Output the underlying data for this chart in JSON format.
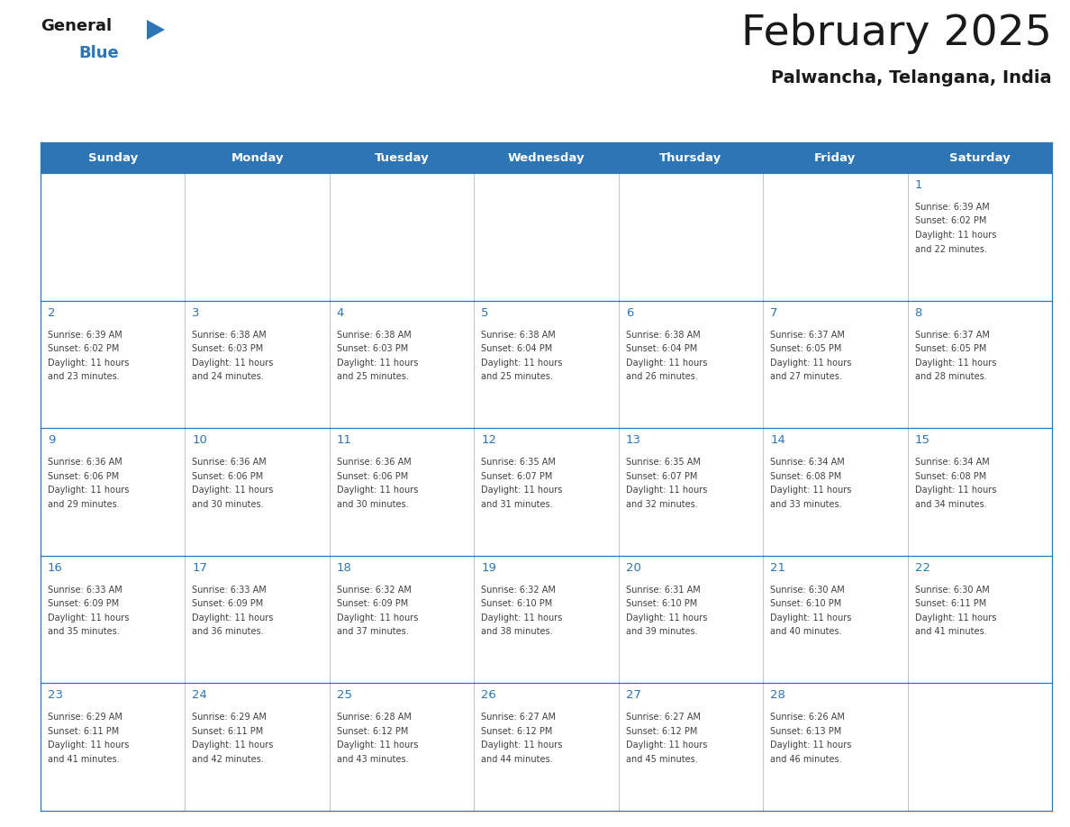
{
  "title": "February 2025",
  "subtitle": "Palwancha, Telangana, India",
  "header_bg": "#2E75B6",
  "header_text_color": "#FFFFFF",
  "cell_bg_white": "#FFFFFF",
  "cell_bg_gray": "#F5F5F5",
  "day_number_color": "#2E75B6",
  "text_color": "#404040",
  "border_color": "#2E75B6",
  "grid_line_color": "#AAAAAA",
  "days_of_week": [
    "Sunday",
    "Monday",
    "Tuesday",
    "Wednesday",
    "Thursday",
    "Friday",
    "Saturday"
  ],
  "calendar_data": [
    [
      null,
      null,
      null,
      null,
      null,
      null,
      {
        "day": "1",
        "sunrise": "6:39 AM",
        "sunset": "6:02 PM",
        "daylight_h": "11 hours",
        "daylight_m": "and 22 minutes."
      }
    ],
    [
      {
        "day": "2",
        "sunrise": "6:39 AM",
        "sunset": "6:02 PM",
        "daylight_h": "11 hours",
        "daylight_m": "and 23 minutes."
      },
      {
        "day": "3",
        "sunrise": "6:38 AM",
        "sunset": "6:03 PM",
        "daylight_h": "11 hours",
        "daylight_m": "and 24 minutes."
      },
      {
        "day": "4",
        "sunrise": "6:38 AM",
        "sunset": "6:03 PM",
        "daylight_h": "11 hours",
        "daylight_m": "and 25 minutes."
      },
      {
        "day": "5",
        "sunrise": "6:38 AM",
        "sunset": "6:04 PM",
        "daylight_h": "11 hours",
        "daylight_m": "and 25 minutes."
      },
      {
        "day": "6",
        "sunrise": "6:38 AM",
        "sunset": "6:04 PM",
        "daylight_h": "11 hours",
        "daylight_m": "and 26 minutes."
      },
      {
        "day": "7",
        "sunrise": "6:37 AM",
        "sunset": "6:05 PM",
        "daylight_h": "11 hours",
        "daylight_m": "and 27 minutes."
      },
      {
        "day": "8",
        "sunrise": "6:37 AM",
        "sunset": "6:05 PM",
        "daylight_h": "11 hours",
        "daylight_m": "and 28 minutes."
      }
    ],
    [
      {
        "day": "9",
        "sunrise": "6:36 AM",
        "sunset": "6:06 PM",
        "daylight_h": "11 hours",
        "daylight_m": "and 29 minutes."
      },
      {
        "day": "10",
        "sunrise": "6:36 AM",
        "sunset": "6:06 PM",
        "daylight_h": "11 hours",
        "daylight_m": "and 30 minutes."
      },
      {
        "day": "11",
        "sunrise": "6:36 AM",
        "sunset": "6:06 PM",
        "daylight_h": "11 hours",
        "daylight_m": "and 30 minutes."
      },
      {
        "day": "12",
        "sunrise": "6:35 AM",
        "sunset": "6:07 PM",
        "daylight_h": "11 hours",
        "daylight_m": "and 31 minutes."
      },
      {
        "day": "13",
        "sunrise": "6:35 AM",
        "sunset": "6:07 PM",
        "daylight_h": "11 hours",
        "daylight_m": "and 32 minutes."
      },
      {
        "day": "14",
        "sunrise": "6:34 AM",
        "sunset": "6:08 PM",
        "daylight_h": "11 hours",
        "daylight_m": "and 33 minutes."
      },
      {
        "day": "15",
        "sunrise": "6:34 AM",
        "sunset": "6:08 PM",
        "daylight_h": "11 hours",
        "daylight_m": "and 34 minutes."
      }
    ],
    [
      {
        "day": "16",
        "sunrise": "6:33 AM",
        "sunset": "6:09 PM",
        "daylight_h": "11 hours",
        "daylight_m": "and 35 minutes."
      },
      {
        "day": "17",
        "sunrise": "6:33 AM",
        "sunset": "6:09 PM",
        "daylight_h": "11 hours",
        "daylight_m": "and 36 minutes."
      },
      {
        "day": "18",
        "sunrise": "6:32 AM",
        "sunset": "6:09 PM",
        "daylight_h": "11 hours",
        "daylight_m": "and 37 minutes."
      },
      {
        "day": "19",
        "sunrise": "6:32 AM",
        "sunset": "6:10 PM",
        "daylight_h": "11 hours",
        "daylight_m": "and 38 minutes."
      },
      {
        "day": "20",
        "sunrise": "6:31 AM",
        "sunset": "6:10 PM",
        "daylight_h": "11 hours",
        "daylight_m": "and 39 minutes."
      },
      {
        "day": "21",
        "sunrise": "6:30 AM",
        "sunset": "6:10 PM",
        "daylight_h": "11 hours",
        "daylight_m": "and 40 minutes."
      },
      {
        "day": "22",
        "sunrise": "6:30 AM",
        "sunset": "6:11 PM",
        "daylight_h": "11 hours",
        "daylight_m": "and 41 minutes."
      }
    ],
    [
      {
        "day": "23",
        "sunrise": "6:29 AM",
        "sunset": "6:11 PM",
        "daylight_h": "11 hours",
        "daylight_m": "and 41 minutes."
      },
      {
        "day": "24",
        "sunrise": "6:29 AM",
        "sunset": "6:11 PM",
        "daylight_h": "11 hours",
        "daylight_m": "and 42 minutes."
      },
      {
        "day": "25",
        "sunrise": "6:28 AM",
        "sunset": "6:12 PM",
        "daylight_h": "11 hours",
        "daylight_m": "and 43 minutes."
      },
      {
        "day": "26",
        "sunrise": "6:27 AM",
        "sunset": "6:12 PM",
        "daylight_h": "11 hours",
        "daylight_m": "and 44 minutes."
      },
      {
        "day": "27",
        "sunrise": "6:27 AM",
        "sunset": "6:12 PM",
        "daylight_h": "11 hours",
        "daylight_m": "and 45 minutes."
      },
      {
        "day": "28",
        "sunrise": "6:26 AM",
        "sunset": "6:13 PM",
        "daylight_h": "11 hours",
        "daylight_m": "and 46 minutes."
      },
      null
    ]
  ],
  "logo_general_color": "#1a1a1a",
  "logo_blue_color": "#2E75B6",
  "title_color": "#1a1a1a",
  "subtitle_color": "#1a1a1a"
}
